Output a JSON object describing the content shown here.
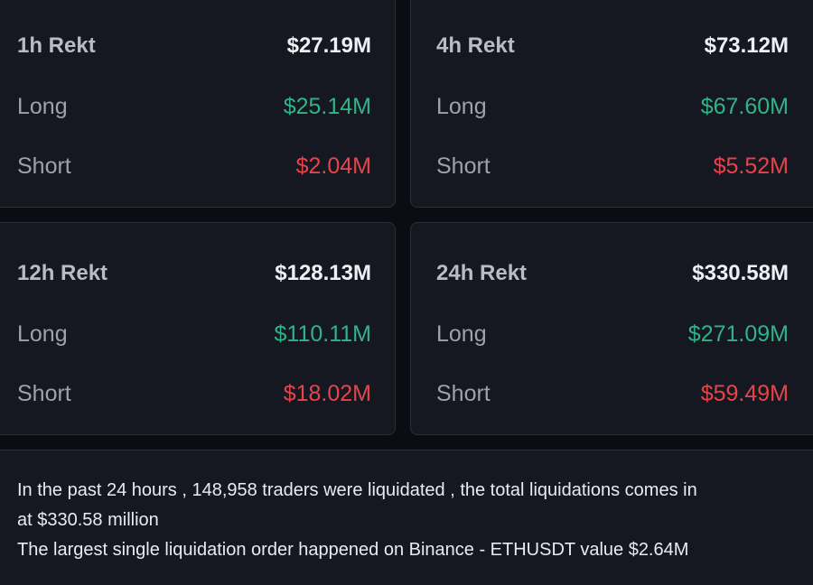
{
  "cards": [
    {
      "title": "1h Rekt",
      "total": "$27.19M",
      "long_label": "Long",
      "long_value": "$25.14M",
      "short_label": "Short",
      "short_value": "$2.04M"
    },
    {
      "title": "4h Rekt",
      "total": "$73.12M",
      "long_label": "Long",
      "long_value": "$67.60M",
      "short_label": "Short",
      "short_value": "$5.52M"
    },
    {
      "title": "12h Rekt",
      "total": "$128.13M",
      "long_label": "Long",
      "long_value": "$110.11M",
      "short_label": "Short",
      "short_value": "$18.02M"
    },
    {
      "title": "24h Rekt",
      "total": "$330.58M",
      "long_label": "Long",
      "long_value": "$271.09M",
      "short_label": "Short",
      "short_value": "$59.49M"
    }
  ],
  "summary": {
    "line1": "In the past 24 hours , 148,958 traders were liquidated , the total liquidations comes in",
    "line2": "at $330.58 million",
    "line3": "The largest single liquidation order happened on Binance - ETHUSDT value $2.64M"
  },
  "colors": {
    "background": "#0b0d13",
    "card": "#151821",
    "long": "#2fb48a",
    "short": "#e8434a"
  }
}
